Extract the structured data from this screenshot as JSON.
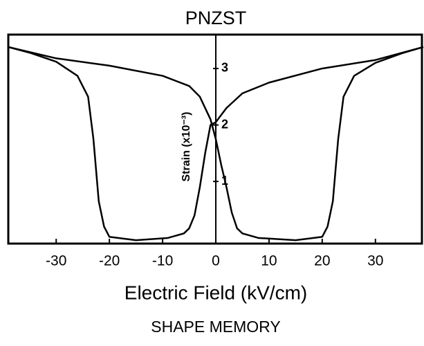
{
  "chart_data": {
    "type": "line",
    "title": "PNZST",
    "xlabel": "Electric Field (kV/cm)",
    "ylabel": "Strain (x10⁻³)",
    "caption": "SHAPE MEMORY",
    "xlim": [
      -39,
      39
    ],
    "xticks": [
      -30,
      -20,
      -10,
      0,
      10,
      20,
      30
    ],
    "ylim": [
      -0.1,
      3.6
    ],
    "yticks": [
      1,
      2,
      3
    ],
    "series": [
      {
        "color": "#000000",
        "x": [
          -39,
          -30,
          -20,
          -10,
          -5,
          -3,
          -1,
          0,
          1,
          2,
          3,
          4,
          5,
          8,
          15,
          20,
          21,
          22,
          23,
          24,
          26,
          30,
          35,
          39
        ],
        "values": [
          3.38,
          3.18,
          3.05,
          2.87,
          2.69,
          2.5,
          2.1,
          1.75,
          1.3,
          0.9,
          0.45,
          0.17,
          0.08,
          0.0,
          -0.04,
          0.02,
          0.2,
          0.65,
          1.75,
          2.5,
          2.87,
          3.1,
          3.27,
          3.38
        ]
      },
      {
        "color": "#000000",
        "x": [
          39,
          30,
          20,
          10,
          5,
          2,
          0,
          -1,
          -2,
          -3,
          -4,
          -5,
          -6,
          -9,
          -15,
          -20,
          -21,
          -22,
          -23,
          -24,
          -26,
          -30,
          -35,
          -39
        ],
        "values": [
          3.38,
          3.15,
          3.0,
          2.75,
          2.56,
          2.3,
          2.05,
          2.0,
          1.5,
          0.9,
          0.4,
          0.17,
          0.08,
          0.0,
          -0.04,
          0.02,
          0.2,
          0.65,
          1.75,
          2.5,
          2.87,
          3.12,
          3.28,
          3.38
        ]
      }
    ]
  }
}
